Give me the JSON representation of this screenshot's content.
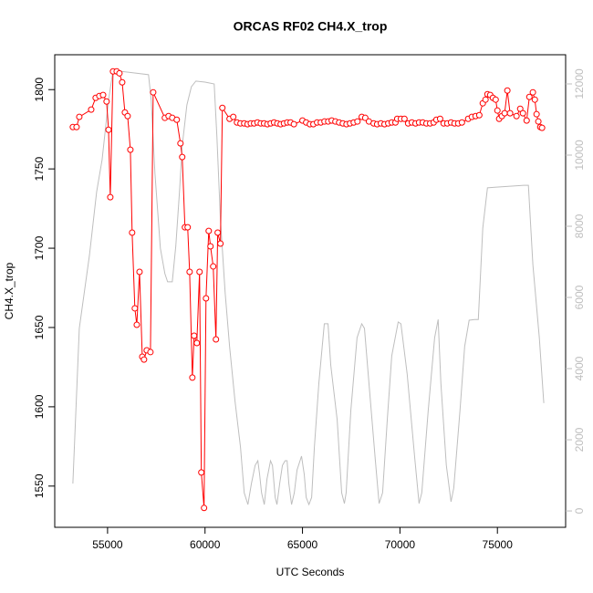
{
  "chart_data": {
    "type": "line",
    "title": "ORCAS RF02 CH4.X_trop",
    "xlabel": "UTC Seconds",
    "ylabel": "CH4.X_trop",
    "xlim": [
      52290,
      78500
    ],
    "ylim": [
      1524,
      1822
    ],
    "y2lim": [
      -460,
      12820
    ],
    "xticks": [
      55000,
      60000,
      65000,
      70000,
      75000
    ],
    "yticks": [
      1550,
      1600,
      1650,
      1700,
      1750,
      1800
    ],
    "y2ticks": [
      0,
      2000,
      4000,
      6000,
      8000,
      10000,
      12000
    ],
    "y2color": "#bebebe",
    "series": [
      {
        "color": "#ff0000",
        "marker": "circle",
        "x": [
          53220,
          53410,
          53550,
          54160,
          54390,
          54580,
          54770,
          54950,
          55050,
          55140,
          55280,
          55470,
          55610,
          55750,
          55890,
          56030,
          56170,
          56260,
          56400,
          56500,
          56640,
          56780,
          56870,
          57010,
          57200,
          57340,
          57940,
          58130,
          58320,
          58550,
          58740,
          58830,
          58970,
          59110,
          59210,
          59350,
          59440,
          59580,
          59720,
          59810,
          59950,
          60050,
          60190,
          60280,
          60420,
          60560,
          60650,
          60790,
          60890,
          61260,
          61450,
          61640,
          61820,
          62010,
          62180,
          62350,
          62520,
          62690,
          62860,
          63030,
          63200,
          63370,
          63540,
          63710,
          63880,
          64050,
          64220,
          64390,
          64560,
          65000,
          65190,
          65380,
          65560,
          65750,
          65940,
          66130,
          66320,
          66500,
          66690,
          66880,
          67070,
          67260,
          67440,
          67630,
          67820,
          68040,
          68220,
          68410,
          68650,
          68830,
          69020,
          69210,
          69400,
          69580,
          69770,
          69860,
          70050,
          70230,
          70420,
          70610,
          70800,
          70980,
          71170,
          71360,
          71550,
          71730,
          71870,
          72060,
          72240,
          72430,
          72620,
          72800,
          72990,
          73180,
          73500,
          73690,
          73880,
          74070,
          74250,
          74390,
          74490,
          74630,
          74770,
          74910,
          75000,
          75090,
          75230,
          75370,
          75510,
          75650,
          75980,
          76170,
          76310,
          76500,
          76640,
          76820,
          76920,
          77010,
          77100,
          77200,
          77290
        ],
        "values": [
          1776.4,
          1776.4,
          1782.8,
          1787.4,
          1794.8,
          1796.0,
          1796.6,
          1792.5,
          1774.7,
          1732.2,
          1811.5,
          1811.5,
          1810.3,
          1804.6,
          1785.6,
          1783.3,
          1762.1,
          1709.8,
          1662.1,
          1651.7,
          1685.1,
          1631.6,
          1629.8,
          1635.6,
          1634.5,
          1798.3,
          1782.2,
          1783.3,
          1782.2,
          1781.0,
          1766.1,
          1757.5,
          1713.2,
          1713.2,
          1685.1,
          1618.4,
          1644.8,
          1640.2,
          1685.1,
          1558.6,
          1536.2,
          1668.4,
          1710.9,
          1701.2,
          1688.5,
          1642.5,
          1709.8,
          1702.9,
          1788.5,
          1781.6,
          1782.8,
          1779.3,
          1778.7,
          1778.7,
          1778.2,
          1778.7,
          1778.7,
          1779.3,
          1778.7,
          1778.7,
          1778.2,
          1778.7,
          1779.3,
          1778.7,
          1778.2,
          1778.7,
          1779.3,
          1779.3,
          1778.2,
          1780.5,
          1779.3,
          1778.2,
          1778.2,
          1779.3,
          1779.3,
          1779.9,
          1779.9,
          1780.5,
          1779.9,
          1779.3,
          1778.7,
          1778.2,
          1778.7,
          1779.3,
          1779.9,
          1782.8,
          1782.2,
          1779.9,
          1778.7,
          1778.2,
          1778.7,
          1778.2,
          1778.7,
          1779.3,
          1779.3,
          1781.6,
          1781.6,
          1781.6,
          1778.7,
          1779.3,
          1778.7,
          1779.3,
          1779.3,
          1778.7,
          1778.7,
          1779.3,
          1781.0,
          1781.6,
          1778.7,
          1778.7,
          1779.3,
          1778.7,
          1778.7,
          1779.3,
          1781.6,
          1782.8,
          1783.3,
          1783.9,
          1791.4,
          1793.7,
          1797.1,
          1796.6,
          1794.8,
          1793.7,
          1786.8,
          1781.6,
          1783.3,
          1785.1,
          1799.4,
          1785.1,
          1783.3,
          1787.9,
          1785.1,
          1780.5,
          1795.4,
          1798.3,
          1793.7,
          1784.5,
          1779.9,
          1776.4,
          1775.9
        ]
      },
      {
        "color": "#bebebe",
        "axis": "y2",
        "x": [
          53220,
          53550,
          54070,
          54440,
          54720,
          55050,
          55280,
          57100,
          57240,
          57430,
          57710,
          57940,
          58080,
          58320,
          58500,
          58690,
          58830,
          59070,
          59300,
          59530,
          60000,
          60470,
          60610,
          60790,
          61030,
          61260,
          61540,
          61820,
          62010,
          62200,
          62380,
          62570,
          62710,
          62800,
          62900,
          63040,
          63180,
          63360,
          63460,
          63600,
          63690,
          63830,
          63970,
          64110,
          64210,
          64300,
          64440,
          64580,
          64720,
          64950,
          65090,
          65190,
          65330,
          65470,
          65610,
          65840,
          66120,
          66310,
          66450,
          66780,
          67010,
          67150,
          67240,
          67480,
          67800,
          68040,
          68180,
          68410,
          68740,
          68930,
          69110,
          69350,
          69580,
          69910,
          70050,
          70370,
          70750,
          70980,
          71120,
          71450,
          71780,
          71960,
          72100,
          72380,
          72620,
          72760,
          73080,
          73320,
          73550,
          73830,
          74020,
          74250,
          74490,
          74950,
          76350,
          76590,
          76820,
          77150,
          77380
        ],
        "values": [
          770,
          5130,
          7180,
          8970,
          9870,
          11540,
          12380,
          12260,
          11540,
          9490,
          7380,
          6670,
          6440,
          6440,
          7440,
          8970,
          10260,
          11410,
          11920,
          12080,
          12050,
          12000,
          10510,
          8200,
          6150,
          4620,
          3080,
          1790,
          510,
          180,
          770,
          1280,
          1410,
          1030,
          510,
          180,
          900,
          1410,
          1280,
          380,
          180,
          770,
          1280,
          1410,
          1410,
          770,
          180,
          510,
          1150,
          1540,
          1030,
          380,
          180,
          380,
          1790,
          3590,
          5260,
          5260,
          4100,
          2560,
          510,
          210,
          510,
          2820,
          4870,
          5260,
          5130,
          3590,
          1410,
          210,
          510,
          2560,
          4360,
          5310,
          5260,
          3850,
          1540,
          210,
          510,
          2820,
          4870,
          5380,
          3590,
          1280,
          260,
          640,
          2820,
          4620,
          5360,
          5380,
          5380,
          7950,
          9080,
          9100,
          9150,
          9150,
          6920,
          4870,
          3030
        ]
      }
    ]
  }
}
